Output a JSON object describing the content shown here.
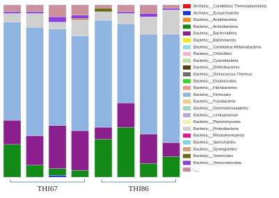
{
  "chart_data": {
    "type": "stacked_bar",
    "categories": [
      null,
      null,
      null,
      null,
      null,
      null,
      null,
      null
    ],
    "group_labels": [
      "THI67",
      "THI86"
    ],
    "ylim": [
      0,
      100
    ],
    "series": [
      {
        "name": "Archaea;__Candidatus Thermoplasmatota",
        "color": "#e8141c",
        "values": [
          0,
          0,
          0,
          0,
          0,
          0,
          0,
          0
        ]
      },
      {
        "name": "Archaea;__Euryarchaeota",
        "color": "#1d2fe0",
        "values": [
          0,
          0,
          1,
          0,
          0,
          0,
          0,
          0
        ]
      },
      {
        "name": "Bacteria;__Acidobacteria",
        "color": "#f08a1c",
        "values": [
          0,
          0,
          0,
          0,
          0,
          0,
          0,
          0
        ]
      },
      {
        "name": "Bacteria;__Actinobacteria",
        "color": "#138a17",
        "values": [
          19,
          7,
          4,
          4,
          22,
          29,
          8,
          12
        ]
      },
      {
        "name": "Bacteria;__Bacteroidetes",
        "color": "#8c1f8e",
        "values": [
          14,
          17,
          25,
          23,
          7,
          14,
          17,
          8
        ]
      },
      {
        "name": "Bacteria;__Balneolaeota",
        "color": "#f5e51b",
        "values": [
          0,
          0,
          0,
          0,
          0,
          0,
          0,
          0
        ]
      },
      {
        "name": "Bacteria;__Candidatus Melainabacteria",
        "color": "#8fd9e8",
        "values": [
          0,
          0,
          0,
          0,
          0,
          0,
          0,
          0
        ]
      },
      {
        "name": "Bacteria;__Chloroflexi",
        "color": "#f2b6d2",
        "values": [
          0,
          0,
          0,
          0,
          0,
          0,
          0,
          0
        ]
      },
      {
        "name": "Bacteria;__Cyanobacteria",
        "color": "#b8e0a0",
        "values": [
          0,
          0,
          0,
          0,
          0,
          0,
          0,
          0
        ]
      },
      {
        "name": "Bacteria;__Deferribacteres",
        "color": "#5c3a12",
        "values": [
          0,
          0,
          0,
          0,
          0,
          0,
          0,
          0
        ]
      },
      {
        "name": "Bacteria;__Deinococcus-Thermus",
        "color": "#6e6e6e",
        "values": [
          0,
          0,
          0,
          0,
          0,
          0,
          0,
          0
        ]
      },
      {
        "name": "Bacteria;__Elusimicrobia",
        "color": "#36d62a",
        "values": [
          0,
          0,
          0,
          0,
          0,
          0,
          0,
          0
        ]
      },
      {
        "name": "Bacteria;__Fibrobacteres",
        "color": "#f29a86",
        "values": [
          0,
          0,
          0,
          0,
          0,
          0,
          0,
          0
        ]
      },
      {
        "name": "Bacteria;__Firmicutes",
        "color": "#8fb4e2",
        "values": [
          57,
          63,
          56,
          55,
          62,
          46,
          58,
          63
        ]
      },
      {
        "name": "Bacteria;__Fusobacteria",
        "color": "#f7c98a",
        "values": [
          0,
          0,
          0,
          0,
          0,
          0,
          0,
          0
        ]
      },
      {
        "name": "Bacteria;__Gemmatimonadetes",
        "color": "#9fd8b4",
        "values": [
          0,
          0,
          0,
          0,
          0,
          0,
          0,
          0
        ]
      },
      {
        "name": "Bacteria;__Lentisphaerae",
        "color": "#b9a8d8",
        "values": [
          0,
          0,
          0,
          0,
          0,
          0,
          0,
          0
        ]
      },
      {
        "name": "Bacteria;__Planctomycetes",
        "color": "#f5f0a8",
        "values": [
          0,
          0,
          0,
          0,
          0,
          0,
          0,
          0
        ]
      },
      {
        "name": "Bacteria;__Proteobacteria",
        "color": "#cfcfcf",
        "values": [
          5,
          8,
          4,
          9,
          5,
          6,
          10,
          14
        ]
      },
      {
        "name": "Bacteria;__Rhodothermaeota",
        "color": "#e0188c",
        "values": [
          0,
          0,
          0,
          0,
          0,
          0,
          0,
          0
        ]
      },
      {
        "name": "Bacteria;__Spirochaetes",
        "color": "#7fd0e8",
        "values": [
          0,
          0,
          0,
          0,
          0,
          0,
          0,
          0
        ]
      },
      {
        "name": "Bacteria;__Synergistetes",
        "color": "#d2a070",
        "values": [
          0,
          0,
          0,
          1,
          0,
          0,
          0,
          0
        ]
      },
      {
        "name": "Bacteria;__Tenericutes",
        "color": "#6b6b12",
        "values": [
          0,
          0,
          0,
          0,
          2,
          0,
          0,
          0
        ]
      },
      {
        "name": "Bacteria;__Verrucomicrobia",
        "color": "#8a40d8",
        "values": [
          1,
          1,
          3,
          2,
          0,
          1,
          2,
          1
        ]
      },
      {
        "name": ";__",
        "color": "#c9909c",
        "values": [
          4,
          4,
          7,
          6,
          2,
          4,
          5,
          2
        ]
      }
    ]
  }
}
